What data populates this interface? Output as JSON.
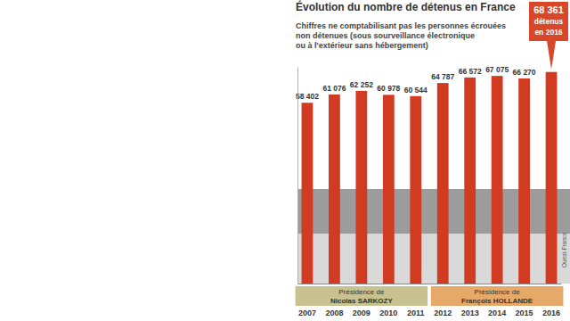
{
  "chart_data": {
    "type": "bar",
    "title": "Évolution du nombre de détenus en France",
    "subtitle": [
      "Chiffres ne comptabilisant pas les personnes écrouées",
      "non détenues (sous sourveillance électronique",
      "ou à l'extérieur sans hébergement)"
    ],
    "categories": [
      "2007",
      "2008",
      "2009",
      "2010",
      "2011",
      "2012",
      "2013",
      "2014",
      "2015",
      "2016"
    ],
    "values": [
      58402,
      61076,
      62252,
      60978,
      60544,
      64787,
      66572,
      67075,
      66270,
      68361
    ],
    "value_labels": [
      "58 402",
      "61 076",
      "62 252",
      "60 978",
      "60 544",
      "64 787",
      "66 572",
      "67 075",
      "66 270",
      null
    ],
    "color": "#d13b22",
    "ylim": [
      0,
      70000
    ],
    "data_labels": true,
    "tick_labels": "x",
    "callout": {
      "category": "2016",
      "lines": [
        "68 361",
        "détenus",
        "en 2016"
      ],
      "color": "#d9472b"
    },
    "periods": [
      {
        "lines": [
          "Présidence de",
          "Nicolas SARKOZY"
        ],
        "from": "2007",
        "to": "2011",
        "color": "#c8c190"
      },
      {
        "lines": [
          "Présidence de",
          "François HOLLANDE"
        ],
        "from": "2012",
        "to": "2016",
        "color": "#e6a96a"
      }
    ],
    "credit": "Ouest-France"
  }
}
